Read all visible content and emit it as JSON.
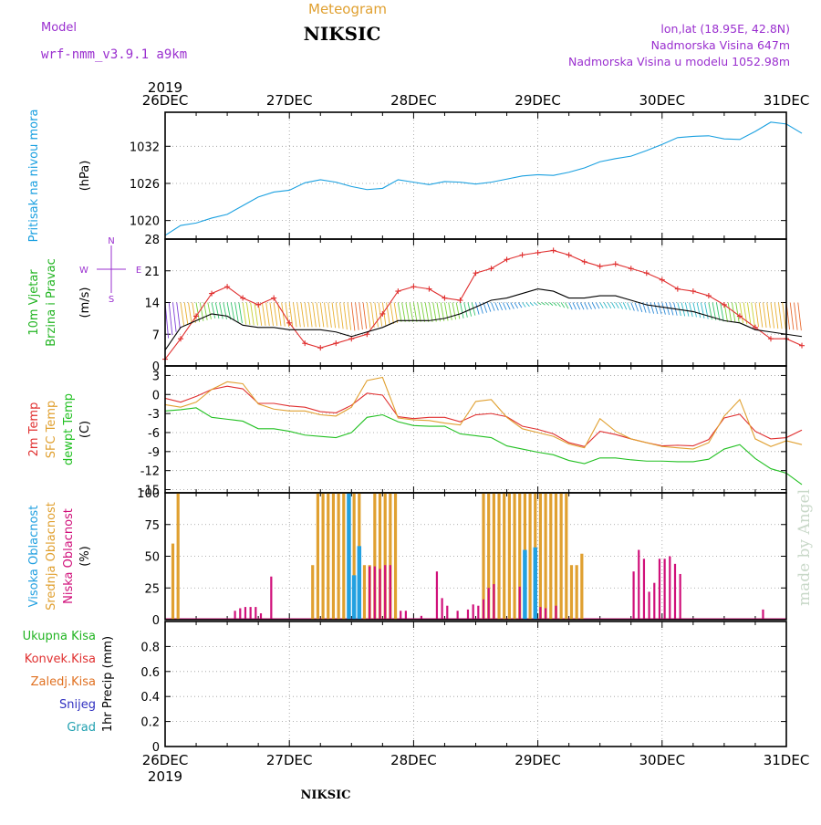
{
  "header": {
    "model_label": "Model",
    "model_name": "wrf-nmm_v3.9.1  a9km",
    "suptitle": "Meteogram",
    "title": "NIKSIC",
    "lonlat": "lon,lat (18.95E, 42.8N)",
    "elevation": "Nadmorska Visina 647m",
    "model_elevation": "Nadmorska Visina u modelu 1052.98m",
    "footer_station": "NIKSIC",
    "watermark": "made by Angel"
  },
  "colors": {
    "model_label": "#9a2fcf",
    "suptitle": "#e0a030",
    "info": "#9a2fcf",
    "pressure": "#1aa0e0",
    "wind_label": "#22b422",
    "wind_gust": "#e03030",
    "wind_speed": "#000000",
    "temp_2m": "#e03030",
    "temp_sfc": "#e0a030",
    "dewpoint": "#22c022",
    "cloud_high": "#22a0e0",
    "cloud_mid": "#e0a030",
    "cloud_low": "#d0107a",
    "precip_total": "#22b422",
    "precip_conv": "#e03030",
    "precip_frz": "#e07020",
    "precip_snow": "#3030c0",
    "precip_hail": "#20a0b0",
    "watermark": "#c8d8c8"
  },
  "chart_data": {
    "type": "meteogram",
    "x_axis": {
      "year_label": "2019",
      "ticks": [
        "26DEC",
        "27DEC",
        "28DEC",
        "29DEC",
        "30DEC",
        "31DEC"
      ],
      "range_hours": [
        0,
        120
      ],
      "step_hours": 3
    },
    "panels": [
      {
        "id": "pressure",
        "type": "line",
        "ylabel": "(hPa)",
        "side_label": [
          "Pritisak na nivou mora"
        ],
        "yticks": [
          "1020",
          "1026",
          "1032"
        ],
        "ylim": [
          1017,
          1037.5
        ],
        "series": [
          {
            "name": "pressure",
            "values": [
              1017.6,
              1019.2,
              1019.6,
              1020.4,
              1021.0,
              1022.4,
              1023.8,
              1024.6,
              1024.9,
              1026.1,
              1026.6,
              1026.2,
              1025.5,
              1025.0,
              1025.2,
              1026.6,
              1026.2,
              1025.8,
              1026.3,
              1026.2,
              1025.9,
              1026.2,
              1026.7,
              1027.2,
              1027.4,
              1027.3,
              1027.8,
              1028.5,
              1029.5,
              1030.0,
              1030.4,
              1031.3,
              1032.3,
              1033.4,
              1033.6,
              1033.7,
              1033.2,
              1033.1,
              1034.4,
              1035.9,
              1035.6,
              1034.1
            ]
          }
        ]
      },
      {
        "id": "wind",
        "type": "line",
        "ylabel": "(m/s)",
        "side_label": [
          "10m Vjetar",
          "Brzina i Pravac"
        ],
        "compass": [
          "N",
          "E",
          "S",
          "W"
        ],
        "yticks": [
          "0",
          "7",
          "14",
          "21",
          "28"
        ],
        "ylim": [
          0,
          28
        ],
        "series": [
          {
            "name": "gust",
            "values": [
              1.5,
              6.0,
              11.0,
              16.0,
              17.5,
              15.0,
              13.5,
              15.0,
              9.5,
              5.0,
              4.0,
              5.0,
              6.0,
              7.0,
              11.5,
              16.5,
              17.5,
              17.0,
              15.0,
              14.5,
              20.5,
              21.5,
              23.5,
              24.5,
              25.0,
              25.5,
              24.5,
              23.0,
              22.0,
              22.5,
              21.5,
              20.5,
              19.0,
              17.0,
              16.5,
              15.5,
              13.5,
              11.0,
              8.5,
              6.0,
              6.0,
              4.5
            ]
          },
          {
            "name": "speed",
            "values": [
              3.5,
              8.5,
              10.0,
              11.5,
              11.0,
              9.0,
              8.5,
              8.5,
              8.0,
              8.0,
              8.0,
              7.5,
              6.5,
              7.5,
              8.5,
              10.0,
              10.0,
              10.0,
              10.5,
              11.5,
              13.0,
              14.5,
              15.0,
              16.0,
              17.0,
              16.5,
              15.0,
              15.0,
              15.5,
              15.5,
              14.5,
              13.5,
              13.0,
              12.5,
              12.0,
              11.0,
              10.0,
              9.5,
              8.0,
              7.5,
              7.0,
              6.5
            ]
          }
        ],
        "barb_band_value": 14
      },
      {
        "id": "temperature",
        "type": "line",
        "ylabel": "(C)",
        "side_label": [
          "2m Temp",
          "SFC Temp",
          "dewpt Temp"
        ],
        "yticks": [
          "-15",
          "-12",
          "-9",
          "-6",
          "-3",
          "0",
          "3"
        ],
        "ylim": [
          -15.5,
          4.5
        ],
        "series": [
          {
            "name": "2m Temp",
            "values": [
              -0.6,
              -1.2,
              -0.3,
              0.8,
              1.3,
              0.9,
              -1.4,
              -1.4,
              -1.8,
              -2.0,
              -2.7,
              -2.9,
              -1.7,
              0.2,
              -0.1,
              -3.5,
              -3.8,
              -3.6,
              -3.6,
              -4.3,
              -3.2,
              -3.0,
              -3.5,
              -5.0,
              -5.5,
              -6.2,
              -7.6,
              -8.2,
              -5.8,
              -6.3,
              -7.0,
              -7.6,
              -8.1,
              -8.0,
              -8.1,
              -7.1,
              -3.7,
              -3.1,
              -5.8,
              -7.0,
              -6.8,
              -5.6
            ]
          },
          {
            "name": "SFC Temp",
            "values": [
              -1.6,
              -2.0,
              -1.2,
              0.8,
              2.0,
              1.7,
              -1.5,
              -2.3,
              -2.6,
              -2.6,
              -3.2,
              -3.4,
              -2.0,
              2.2,
              2.7,
              -3.7,
              -4.0,
              -4.1,
              -4.5,
              -4.8,
              -1.1,
              -0.8,
              -3.6,
              -5.4,
              -6.0,
              -6.6,
              -7.8,
              -8.4,
              -3.8,
              -5.8,
              -7.0,
              -7.6,
              -8.2,
              -8.4,
              -8.6,
              -7.6,
              -3.4,
              -0.8,
              -7.0,
              -8.2,
              -7.3,
              -7.9
            ]
          },
          {
            "name": "dewpt Temp",
            "values": [
              -2.6,
              -2.4,
              -2.1,
              -3.6,
              -3.9,
              -4.2,
              -5.4,
              -5.4,
              -5.8,
              -6.4,
              -6.6,
              -6.8,
              -6.0,
              -3.6,
              -3.2,
              -4.3,
              -4.9,
              -5.0,
              -5.0,
              -6.2,
              -6.5,
              -6.8,
              -8.1,
              -8.6,
              -9.1,
              -9.5,
              -10.4,
              -10.9,
              -10.0,
              -10.0,
              -10.3,
              -10.5,
              -10.5,
              -10.6,
              -10.6,
              -10.2,
              -8.6,
              -7.9,
              -10.1,
              -11.7,
              -12.4,
              -14.2
            ]
          }
        ]
      },
      {
        "id": "clouds",
        "type": "bar",
        "ylabel": "(%)",
        "side_label": [
          "Visoka Oblacnost",
          "Srednja Oblacnost",
          "Niska Oblacnost"
        ],
        "yticks": [
          "0",
          "25",
          "50",
          "75",
          "100"
        ],
        "ylim": [
          0,
          100
        ],
        "series": [
          {
            "name": "Srednja Oblacnost",
            "points": [
              [
                1.5,
                60
              ],
              [
                2.5,
                100
              ],
              [
                28.5,
                43
              ],
              [
                29.5,
                100
              ],
              [
                30.5,
                100
              ],
              [
                31.5,
                100
              ],
              [
                32.5,
                100
              ],
              [
                33.5,
                100
              ],
              [
                34.5,
                100
              ],
              [
                35.5,
                100
              ],
              [
                36.5,
                100
              ],
              [
                37.5,
                100
              ],
              [
                38.5,
                43
              ],
              [
                39.5,
                43
              ],
              [
                40.5,
                100
              ],
              [
                41.5,
                100
              ],
              [
                42.5,
                100
              ],
              [
                43.5,
                100
              ],
              [
                44.5,
                100
              ],
              [
                61.5,
                100
              ],
              [
                62.5,
                100
              ],
              [
                63.5,
                100
              ],
              [
                64.5,
                100
              ],
              [
                65.5,
                100
              ],
              [
                66.5,
                100
              ],
              [
                67.5,
                100
              ],
              [
                68.5,
                100
              ],
              [
                69.5,
                100
              ],
              [
                70.5,
                100
              ],
              [
                71.5,
                100
              ],
              [
                72.5,
                100
              ],
              [
                73.5,
                100
              ],
              [
                74.5,
                100
              ],
              [
                75.5,
                100
              ],
              [
                76.5,
                100
              ],
              [
                77.5,
                100
              ],
              [
                78.5,
                43
              ],
              [
                79.5,
                43
              ],
              [
                80.5,
                52
              ]
            ]
          },
          {
            "name": "Visoka Oblacnost",
            "points": [
              [
                35.5,
                100
              ],
              [
                36.5,
                35
              ],
              [
                37.5,
                58
              ],
              [
                69.5,
                55
              ],
              [
                71.5,
                57
              ]
            ]
          },
          {
            "name": "Niska Oblacnost",
            "points": [
              [
                13.5,
                7
              ],
              [
                14.5,
                9
              ],
              [
                15.5,
                10
              ],
              [
                16.5,
                10
              ],
              [
                17.5,
                10
              ],
              [
                18.5,
                5
              ],
              [
                20.5,
                34
              ],
              [
                39.5,
                42
              ],
              [
                40.5,
                42
              ],
              [
                41.5,
                40
              ],
              [
                42.5,
                43
              ],
              [
                43.5,
                43
              ],
              [
                45.5,
                7
              ],
              [
                46.5,
                7
              ],
              [
                49.5,
                3
              ],
              [
                52.5,
                38
              ],
              [
                53.5,
                17
              ],
              [
                54.5,
                11
              ],
              [
                56.5,
                7
              ],
              [
                58.5,
                8
              ],
              [
                59.5,
                12
              ],
              [
                60.5,
                11
              ],
              [
                61.5,
                16
              ],
              [
                62.5,
                25
              ],
              [
                63.5,
                28
              ],
              [
                68.5,
                26
              ],
              [
                72.5,
                10
              ],
              [
                73.5,
                9
              ],
              [
                75.5,
                11
              ],
              [
                90.5,
                38
              ],
              [
                91.5,
                55
              ],
              [
                92.5,
                48
              ],
              [
                93.5,
                22
              ],
              [
                94.5,
                29
              ],
              [
                95.5,
                48
              ],
              [
                96.5,
                48
              ],
              [
                97.5,
                50
              ],
              [
                98.5,
                44
              ],
              [
                99.5,
                36
              ],
              [
                115.5,
                8
              ]
            ]
          }
        ]
      },
      {
        "id": "precip",
        "type": "bar",
        "ylabel": "1hr Precip (mm)",
        "side_label": [
          "Ukupna Kisa",
          "Konvek.Kisa",
          "Zaledj.Kisa",
          "Snijeg",
          "Grad"
        ],
        "yticks": [
          "0",
          "0.2",
          "0.4",
          "0.6",
          "0.8"
        ],
        "ylim": [
          0,
          1.0
        ],
        "series": []
      }
    ],
    "grid": "dotted"
  }
}
